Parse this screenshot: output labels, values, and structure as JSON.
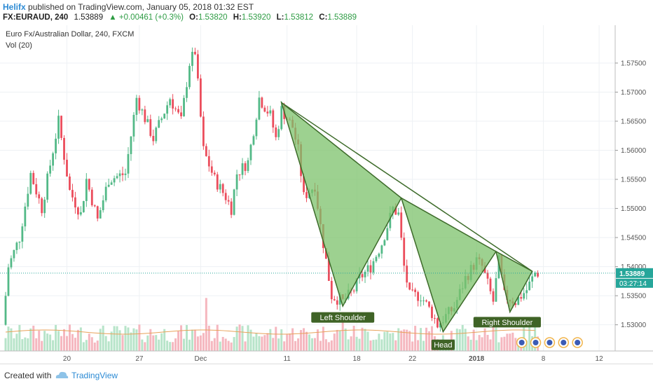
{
  "header": {
    "user": "Helifx",
    "published": "published on TradingView.com, January 05, 2018 01:32 EST",
    "symbol": "FX:EURAUD, 240",
    "last": "1.53889",
    "change": "▲ +0.00461 (+0.3%)",
    "o_label": "O:",
    "o_value": "1.53820",
    "h_label": "H:",
    "h_value": "1.53920",
    "l_label": "L:",
    "l_value": "1.53812",
    "c_label": "C:",
    "c_value": "1.53889"
  },
  "legend": {
    "title": "Euro Fx/Australian Dollar, 240, FXCM",
    "vol": "Vol (20)"
  },
  "footer": {
    "created": "Created with",
    "brand": "TradingView"
  },
  "colors": {
    "up": "#53b987",
    "down": "#eb4d5c",
    "pattern_fill": "#7cc26b",
    "pattern_stroke": "#3d6b2a",
    "label_bg": "#3f6326",
    "price_tag": "#26a69a"
  },
  "chart_data": {
    "type": "candlestick",
    "symbol": "EURAUD",
    "price_axis": {
      "min": 1.5255,
      "max": 1.5815,
      "ticks": [
        1.53,
        1.535,
        1.54,
        1.545,
        1.55,
        1.555,
        1.56,
        1.565,
        1.57,
        1.575
      ],
      "tick_labels": [
        "1.53000",
        "1.53500",
        "1.54000",
        "1.54500",
        "1.55000",
        "1.55500",
        "1.56000",
        "1.56500",
        "1.57000",
        "1.57500"
      ]
    },
    "time_axis": {
      "bars": 192,
      "labels": [
        {
          "bar": 22,
          "text": "20"
        },
        {
          "bar": 48,
          "text": "27"
        },
        {
          "bar": 70,
          "text": "Dec"
        },
        {
          "bar": 101,
          "text": "11"
        },
        {
          "bar": 126,
          "text": "18"
        },
        {
          "bar": 146,
          "text": "22"
        },
        {
          "bar": 169,
          "text": "2018"
        },
        {
          "bar": 193,
          "text": "8"
        },
        {
          "bar": 213,
          "text": "12"
        }
      ]
    },
    "last_price": {
      "value": 1.53889,
      "label": "1.53889",
      "countdown": "03:27:14"
    },
    "pattern": {
      "name": "Head and Shoulders",
      "points": [
        {
          "bar": 99,
          "price": 1.5682
        },
        {
          "bar": 121,
          "price": 1.5332
        },
        {
          "bar": 142,
          "price": 1.5518
        },
        {
          "bar": 157,
          "price": 1.5288
        },
        {
          "bar": 176,
          "price": 1.5426
        },
        {
          "bar": 181,
          "price": 1.5322
        },
        {
          "bar": 189,
          "price": 1.5392
        }
      ],
      "labels": [
        {
          "text": "Left Shoulder",
          "bar": 121,
          "price": 1.5312
        },
        {
          "text": "Head",
          "bar": 157,
          "price": 1.5265
        },
        {
          "text": "Right Shoulder",
          "bar": 180,
          "price": 1.5304
        }
      ]
    },
    "price_anchors": [
      [
        0,
        1.53
      ],
      [
        2,
        1.54
      ],
      [
        6,
        1.545
      ],
      [
        10,
        1.556
      ],
      [
        14,
        1.55
      ],
      [
        20,
        1.565
      ],
      [
        24,
        1.553
      ],
      [
        28,
        1.549
      ],
      [
        30,
        1.555
      ],
      [
        34,
        1.548
      ],
      [
        38,
        1.555
      ],
      [
        44,
        1.556
      ],
      [
        48,
        1.569
      ],
      [
        54,
        1.562
      ],
      [
        60,
        1.569
      ],
      [
        64,
        1.565
      ],
      [
        67,
        1.575
      ],
      [
        69,
        1.577
      ],
      [
        72,
        1.56
      ],
      [
        76,
        1.555
      ],
      [
        80,
        1.552
      ],
      [
        82,
        1.55
      ],
      [
        84,
        1.556
      ],
      [
        88,
        1.558
      ],
      [
        92,
        1.569
      ],
      [
        96,
        1.566
      ],
      [
        98,
        1.562
      ],
      [
        100,
        1.567
      ],
      [
        104,
        1.564
      ],
      [
        106,
        1.56
      ],
      [
        108,
        1.552
      ],
      [
        112,
        1.554
      ],
      [
        114,
        1.547
      ],
      [
        118,
        1.535
      ],
      [
        122,
        1.534
      ],
      [
        126,
        1.536
      ],
      [
        128,
        1.538
      ],
      [
        132,
        1.54
      ],
      [
        136,
        1.544
      ],
      [
        140,
        1.55
      ],
      [
        142,
        1.549
      ],
      [
        144,
        1.54
      ],
      [
        146,
        1.535
      ],
      [
        150,
        1.535
      ],
      [
        154,
        1.532
      ],
      [
        156,
        1.53
      ],
      [
        158,
        1.531
      ],
      [
        162,
        1.533
      ],
      [
        166,
        1.538
      ],
      [
        170,
        1.541
      ],
      [
        172,
        1.54
      ],
      [
        174,
        1.537
      ],
      [
        176,
        1.534
      ],
      [
        178,
        1.541
      ],
      [
        180,
        1.535
      ],
      [
        184,
        1.534
      ],
      [
        188,
        1.536
      ],
      [
        191,
        1.5389
      ]
    ]
  }
}
